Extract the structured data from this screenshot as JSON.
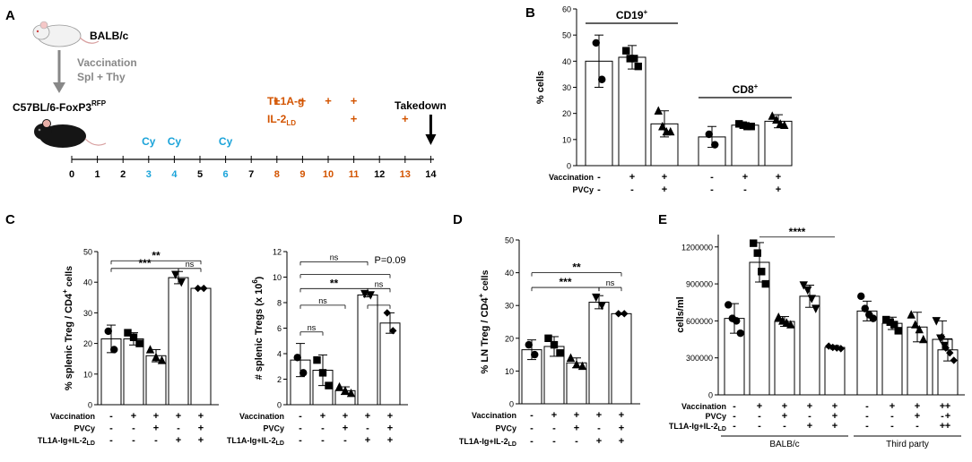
{
  "colors": {
    "black": "#000000",
    "orange": "#d35400",
    "cyan": "#1aa3d9",
    "gray": "#888888",
    "mouse_white": "#f2f2f2",
    "mouse_black": "#151515"
  },
  "panelA": {
    "label": "A",
    "donor": "BALB/c",
    "arrow_line1": "Vaccination",
    "arrow_line2": "Spl + Thy",
    "recipient": "C57BL/6-FoxP3",
    "recipient_sup": "RFP",
    "tl1a_label": "TL1A-g",
    "il2_label": "IL-2",
    "il2_sub": "LD",
    "takedown": "Takedown",
    "cy_label": "Cy",
    "plus": "+",
    "cy_days": [
      3,
      4,
      6
    ],
    "tl1a_days": [
      8,
      9,
      10,
      11
    ],
    "il2_days": [
      11,
      13
    ],
    "takedown_day": 14,
    "timeline_ticks": [
      "0",
      "1",
      "2",
      "3",
      "4",
      "5",
      "6",
      "7",
      "8",
      "9",
      "10",
      "11",
      "12",
      "13",
      "14"
    ],
    "tick_colors": [
      "black",
      "black",
      "black",
      "cyan",
      "cyan",
      "black",
      "cyan",
      "black",
      "orange",
      "orange",
      "orange",
      "orange",
      "black",
      "orange",
      "black"
    ]
  },
  "chart_data": [
    {
      "id": "B",
      "panel_label": "B",
      "type": "bar",
      "ylabel": "% cells",
      "ylim": [
        0,
        60
      ],
      "yticks": [
        "0",
        "10",
        "20",
        "30",
        "40",
        "50",
        "60"
      ],
      "groups": [
        {
          "label": "CD19",
          "label_sup": "+",
          "bars": [
            {
              "mean": 40,
              "sd": 10,
              "marker": "circle",
              "points": [
                47,
                33
              ]
            },
            {
              "mean": 41.5,
              "sd": 4.5,
              "marker": "square",
              "points": [
                44,
                41,
                41,
                38
              ]
            },
            {
              "mean": 16,
              "sd": 5,
              "marker": "triangle",
              "points": [
                21,
                15,
                13,
                13
              ]
            }
          ]
        },
        {
          "label": "CD8",
          "label_sup": "+",
          "bars": [
            {
              "mean": 11,
              "sd": 4,
              "marker": "circle",
              "points": [
                12,
                8
              ]
            },
            {
              "mean": 15.5,
              "sd": 1,
              "marker": "square",
              "points": [
                16,
                15.5,
                15,
                15
              ]
            },
            {
              "mean": 17,
              "sd": 2.5,
              "marker": "triangle",
              "points": [
                19,
                17.5,
                16,
                15.5
              ]
            }
          ]
        }
      ],
      "rows": [
        {
          "label": "Vaccination",
          "signs": [
            "-",
            "+",
            "+",
            "-",
            "+",
            "+"
          ]
        },
        {
          "label": "PVCy",
          "signs": [
            "-",
            "-",
            "+",
            "-",
            "-",
            "+"
          ]
        }
      ]
    },
    {
      "id": "C1",
      "panel_label": "C",
      "type": "bar",
      "ylabel": "% splenic Treg / CD4",
      "ylabel_sup": "+",
      "ylabel_end": " cells",
      "ylim": [
        0,
        50
      ],
      "yticks": [
        "0",
        "10",
        "20",
        "30",
        "40",
        "50"
      ],
      "bars": [
        {
          "mean": 21.5,
          "sd": 4.5,
          "marker": "circle",
          "points": [
            24,
            18
          ]
        },
        {
          "mean": 21.5,
          "sd": 2,
          "marker": "square",
          "points": [
            23.5,
            22,
            20
          ]
        },
        {
          "mean": 16,
          "sd": 2,
          "marker": "triangle",
          "points": [
            18,
            15.5,
            14.5
          ]
        },
        {
          "mean": 41.5,
          "sd": 2,
          "marker": "triangle_down",
          "points": [
            42.5,
            40
          ]
        },
        {
          "mean": 38,
          "sd": 0.3,
          "marker": "diamond",
          "points": [
            38,
            38
          ]
        }
      ],
      "brackets": [
        {
          "from": 0,
          "to": 4,
          "value": 47,
          "text": "**"
        },
        {
          "from": 0,
          "to": 3,
          "value": 44.5,
          "text": "***"
        },
        {
          "from": 3,
          "to": 4,
          "value": 44.5,
          "text": "ns"
        }
      ],
      "rows": [
        {
          "label": "Vaccination",
          "signs": [
            "-",
            "+",
            "+",
            "+",
            "+"
          ]
        },
        {
          "label": "PVCy",
          "signs": [
            "-",
            "-",
            "+",
            "-",
            "+"
          ]
        },
        {
          "label": "TL1A-Ig+IL-2",
          "label_sub": "LD",
          "signs": [
            "-",
            "-",
            "-",
            "+",
            "+"
          ]
        }
      ]
    },
    {
      "id": "C2",
      "panel_label": "",
      "type": "bar",
      "ylabel": "# splenic Tregs (x 10",
      "ylabel_sup": "6",
      "ylabel_end": ")",
      "ylim": [
        0,
        12
      ],
      "yticks": [
        "0",
        "2",
        "4",
        "6",
        "8",
        "10",
        "12"
      ],
      "bars": [
        {
          "mean": 3.5,
          "sd": 1.3,
          "marker": "circle",
          "points": [
            3.7,
            2.5
          ]
        },
        {
          "mean": 2.7,
          "sd": 1.2,
          "marker": "square",
          "points": [
            3.5,
            2.5,
            1.5
          ]
        },
        {
          "mean": 1.1,
          "sd": 0.3,
          "marker": "triangle",
          "points": [
            1.4,
            1.1,
            0.9
          ]
        },
        {
          "mean": 8.6,
          "sd": 0.15,
          "marker": "triangle_down",
          "points": [
            8.7,
            8.6
          ]
        },
        {
          "mean": 6.4,
          "sd": 0.8,
          "marker": "diamond",
          "points": [
            7.2,
            5.8
          ]
        }
      ],
      "brackets": [
        {
          "from": 0,
          "to": 3,
          "value": 11.2,
          "text": "ns"
        },
        {
          "from": 0,
          "to": 4,
          "value": 10.2,
          "text": ""
        },
        {
          "from": 0,
          "to": 3,
          "value": 9.1,
          "text": "**"
        },
        {
          "from": 3,
          "to": 4,
          "value": 9.1,
          "text": "ns"
        },
        {
          "from": 0,
          "to": 2,
          "value": 7.8,
          "text": "ns"
        },
        {
          "from": 0,
          "to": 1,
          "value": 5.7,
          "text": "ns"
        },
        {
          "from": 3,
          "to": 4,
          "value": 7.8,
          "text": ""
        }
      ],
      "annotations": [
        {
          "text": "P=0.09",
          "bar": 3.3,
          "value": 11.1
        }
      ],
      "rows": [
        {
          "label": "Vaccination",
          "signs": [
            "-",
            "+",
            "+",
            "+",
            "+"
          ]
        },
        {
          "label": "PVCy",
          "signs": [
            "-",
            "-",
            "+",
            "-",
            "+"
          ]
        },
        {
          "label": "TL1A-Ig+IL-2",
          "label_sub": "LD",
          "signs": [
            "-",
            "-",
            "-",
            "+",
            "+"
          ]
        }
      ]
    },
    {
      "id": "D",
      "panel_label": "D",
      "type": "bar",
      "ylabel": "% LN Treg / CD4",
      "ylabel_sup": "+",
      "ylabel_end": " cells",
      "ylim": [
        0,
        50
      ],
      "yticks": [
        "0",
        "10",
        "20",
        "30",
        "40",
        "50"
      ],
      "bars": [
        {
          "mean": 16.5,
          "sd": 3,
          "marker": "circle",
          "points": [
            18,
            15
          ]
        },
        {
          "mean": 17.5,
          "sd": 3,
          "marker": "square",
          "points": [
            20,
            18,
            15.5
          ]
        },
        {
          "mean": 12.5,
          "sd": 1.5,
          "marker": "triangle",
          "points": [
            14,
            12,
            11.5
          ]
        },
        {
          "mean": 31,
          "sd": 2,
          "marker": "triangle_down",
          "points": [
            32.5,
            30
          ]
        },
        {
          "mean": 27.5,
          "sd": 0.3,
          "marker": "diamond",
          "points": [
            27.5,
            27.5
          ]
        }
      ],
      "brackets": [
        {
          "from": 0,
          "to": 4,
          "value": 40,
          "text": "**"
        },
        {
          "from": 0,
          "to": 3,
          "value": 35.5,
          "text": "***"
        },
        {
          "from": 3,
          "to": 4,
          "value": 35.5,
          "text": "ns"
        }
      ],
      "rows": [
        {
          "label": "Vaccination",
          "signs": [
            "-",
            "+",
            "+",
            "+",
            "+"
          ]
        },
        {
          "label": "PVCy",
          "signs": [
            "-",
            "-",
            "+",
            "-",
            "+"
          ]
        },
        {
          "label": "TL1A-Ig+IL-2",
          "label_sub": "LD",
          "signs": [
            "-",
            "-",
            "-",
            "+",
            "+"
          ]
        }
      ]
    },
    {
      "id": "E",
      "panel_label": "E",
      "type": "bar",
      "ylabel": "cells/ml",
      "ylim": [
        0,
        1300000
      ],
      "yticks": [
        "0",
        "300000",
        "600000",
        "900000",
        "1200000"
      ],
      "ytick_values": [
        0,
        300000,
        600000,
        900000,
        1200000
      ],
      "bars": [
        {
          "mean": 620000,
          "sd": 120000,
          "marker": "circle",
          "points": [
            730000,
            620000,
            600000,
            500000
          ]
        },
        {
          "mean": 1075000,
          "sd": 160000,
          "marker": "square",
          "points": [
            1230000,
            1150000,
            1000000,
            900000
          ]
        },
        {
          "mean": 595000,
          "sd": 40000,
          "marker": "triangle",
          "points": [
            630000,
            600000,
            585000,
            570000
          ]
        },
        {
          "mean": 800000,
          "sd": 90000,
          "marker": "triangle_down",
          "points": [
            890000,
            850000,
            780000,
            700000
          ]
        },
        {
          "mean": 385000,
          "sd": 15000,
          "marker": "diamond",
          "points": [
            395000,
            385000,
            380000,
            375000
          ]
        },
        {
          "mean": 680000,
          "sd": 80000,
          "marker": "circle",
          "points": [
            800000,
            700000,
            650000,
            620000
          ]
        },
        {
          "mean": 580000,
          "sd": 50000,
          "marker": "square",
          "points": [
            610000,
            590000,
            570000,
            520000
          ]
        },
        {
          "mean": 550000,
          "sd": 120000,
          "marker": "triangle",
          "points": [
            650000,
            570000,
            530000,
            450000
          ]
        },
        {
          "mean": 450000,
          "sd": 150000,
          "marker": "triangle_down",
          "points": [
            600000,
            460000,
            400000,
            300000
          ]
        },
        {
          "mean": 365000,
          "sd": 90000,
          "marker": "diamond",
          "points": [
            470000,
            380000,
            340000,
            280000
          ]
        }
      ],
      "brackets": [
        {
          "from": 1,
          "to": 4,
          "value": 1280000,
          "text": "****",
          "no_drop": true
        }
      ],
      "rows": [
        {
          "label": "Vaccination",
          "signs": [
            "-",
            "+",
            "+",
            "+",
            "+",
            "-",
            "+",
            "+",
            "+",
            "+"
          ]
        },
        {
          "label": "PVCy",
          "signs": [
            "-",
            "-",
            "+",
            "-",
            "+",
            "-",
            "-",
            "+",
            "-",
            "+"
          ]
        },
        {
          "label": "TL1A-Ig+IL-2",
          "label_sub": "LD",
          "signs": [
            "-",
            "-",
            "-",
            "+",
            "+",
            "-",
            "-",
            "-",
            "+",
            "+"
          ]
        }
      ],
      "group_labels": [
        {
          "text": "BALB/c",
          "from": 0,
          "to": 4
        },
        {
          "text": "Third party",
          "from": 5,
          "to": 9
        }
      ]
    }
  ]
}
